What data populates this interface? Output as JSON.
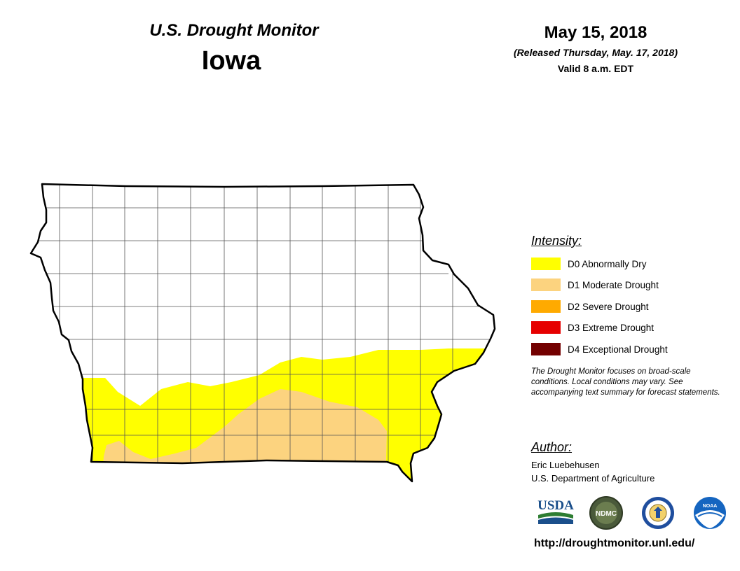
{
  "header": {
    "title": "U.S. Drought Monitor",
    "state": "Iowa",
    "date": "May 15, 2018",
    "released": "(Released Thursday, May. 17, 2018)",
    "valid": "Valid 8 a.m. EDT"
  },
  "legend": {
    "heading": "Intensity:",
    "items": [
      {
        "label": "D0 Abnormally Dry",
        "color": "#ffff00"
      },
      {
        "label": "D1 Moderate Drought",
        "color": "#fcd37f"
      },
      {
        "label": "D2 Severe Drought",
        "color": "#ffaa00"
      },
      {
        "label": "D3 Extreme Drought",
        "color": "#e60000"
      },
      {
        "label": "D4 Exceptional Drought",
        "color": "#730000"
      }
    ]
  },
  "note": "The Drought Monitor focuses on broad-scale conditions. Local conditions may vary. See accompanying text summary for forecast statements.",
  "author": {
    "heading": "Author:",
    "name": "Eric Luebehusen",
    "organization": "U.S. Department of Agriculture"
  },
  "logos": {
    "usda": "USDA",
    "ndmc": "NDMC",
    "noaa": "NOAA"
  },
  "url": "http://droughtmonitor.unl.edu/"
}
